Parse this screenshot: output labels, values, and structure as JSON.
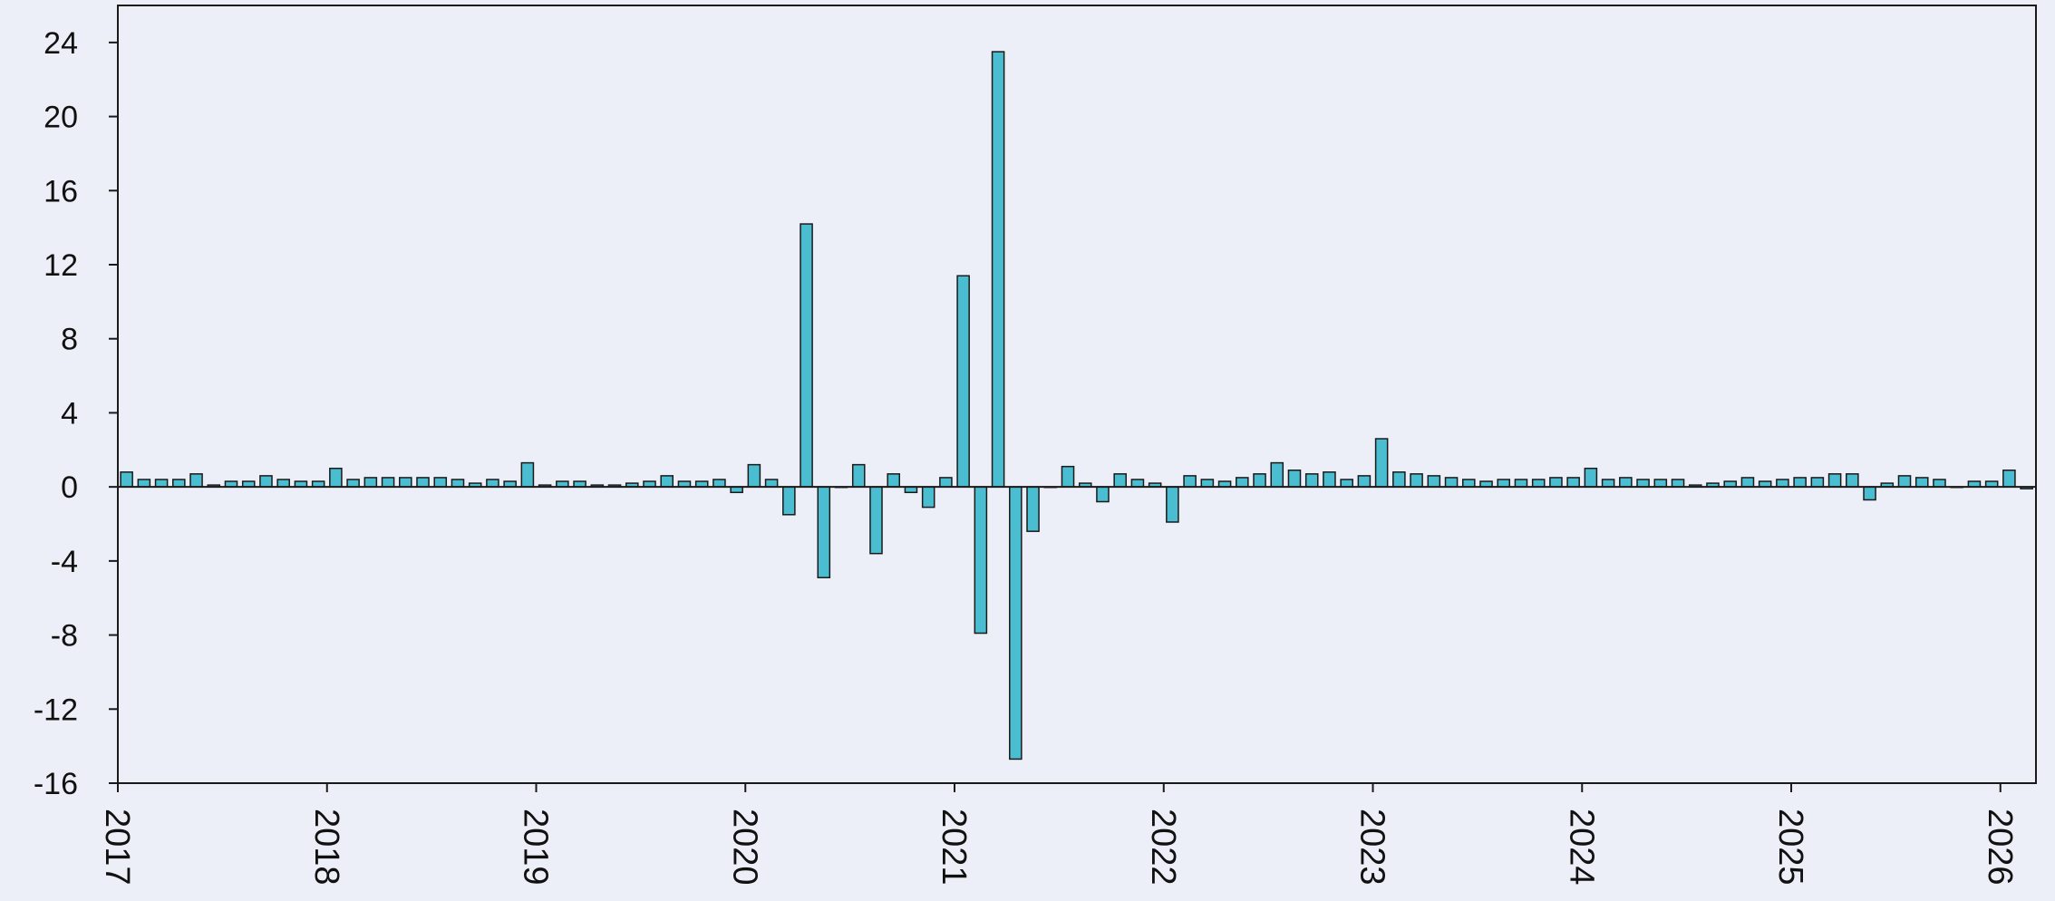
{
  "colors": {
    "background": "#eceff7",
    "bar_fill": "#4bbdd0",
    "bar_stroke": "#1a1a1a",
    "axis": "#1a1a1a"
  },
  "chart_data": {
    "type": "bar",
    "title": "",
    "xlabel": "",
    "ylabel": "",
    "ylim": [
      -16,
      26
    ],
    "xlim": [
      2017,
      2026.17
    ],
    "yticks": [
      -16,
      -12,
      -8,
      -4,
      0,
      4,
      8,
      12,
      16,
      20,
      24
    ],
    "xticks": [
      "2017",
      "2018",
      "2019",
      "2020",
      "2021",
      "2022",
      "2023",
      "2024",
      "2025",
      "2026"
    ],
    "grid": false,
    "legend": "none",
    "frequency": "monthly",
    "start": "2017-01",
    "values": [
      0.8,
      0.4,
      0.4,
      0.4,
      0.7,
      0.1,
      0.3,
      0.3,
      0.6,
      0.4,
      0.3,
      0.3,
      1.0,
      0.4,
      0.5,
      0.5,
      0.5,
      0.5,
      0.5,
      0.4,
      0.2,
      0.4,
      0.3,
      1.3,
      0.1,
      0.3,
      0.3,
      0.1,
      0.1,
      0.2,
      0.3,
      0.6,
      0.3,
      0.3,
      0.4,
      -0.3,
      1.2,
      0.4,
      -1.5,
      14.2,
      -4.9,
      0.0,
      1.2,
      -3.6,
      0.7,
      -0.3,
      -1.1,
      0.5,
      11.4,
      -7.9,
      23.5,
      -14.7,
      -2.4,
      0.0,
      1.1,
      0.2,
      -0.8,
      0.7,
      0.4,
      0.2,
      -1.9,
      0.6,
      0.4,
      0.3,
      0.5,
      0.7,
      1.3,
      0.9,
      0.7,
      0.8,
      0.4,
      0.6,
      2.6,
      0.8,
      0.7,
      0.6,
      0.5,
      0.4,
      0.3,
      0.4,
      0.4,
      0.4,
      0.5,
      0.5,
      1.0,
      0.4,
      0.5,
      0.4,
      0.4,
      0.4,
      0.1,
      0.2,
      0.3,
      0.5,
      0.3,
      0.4,
      0.5,
      0.5,
      0.7,
      0.7,
      -0.7,
      0.2,
      0.6,
      0.5,
      0.4,
      0.0,
      0.3,
      0.3,
      0.9,
      -0.1
    ]
  }
}
